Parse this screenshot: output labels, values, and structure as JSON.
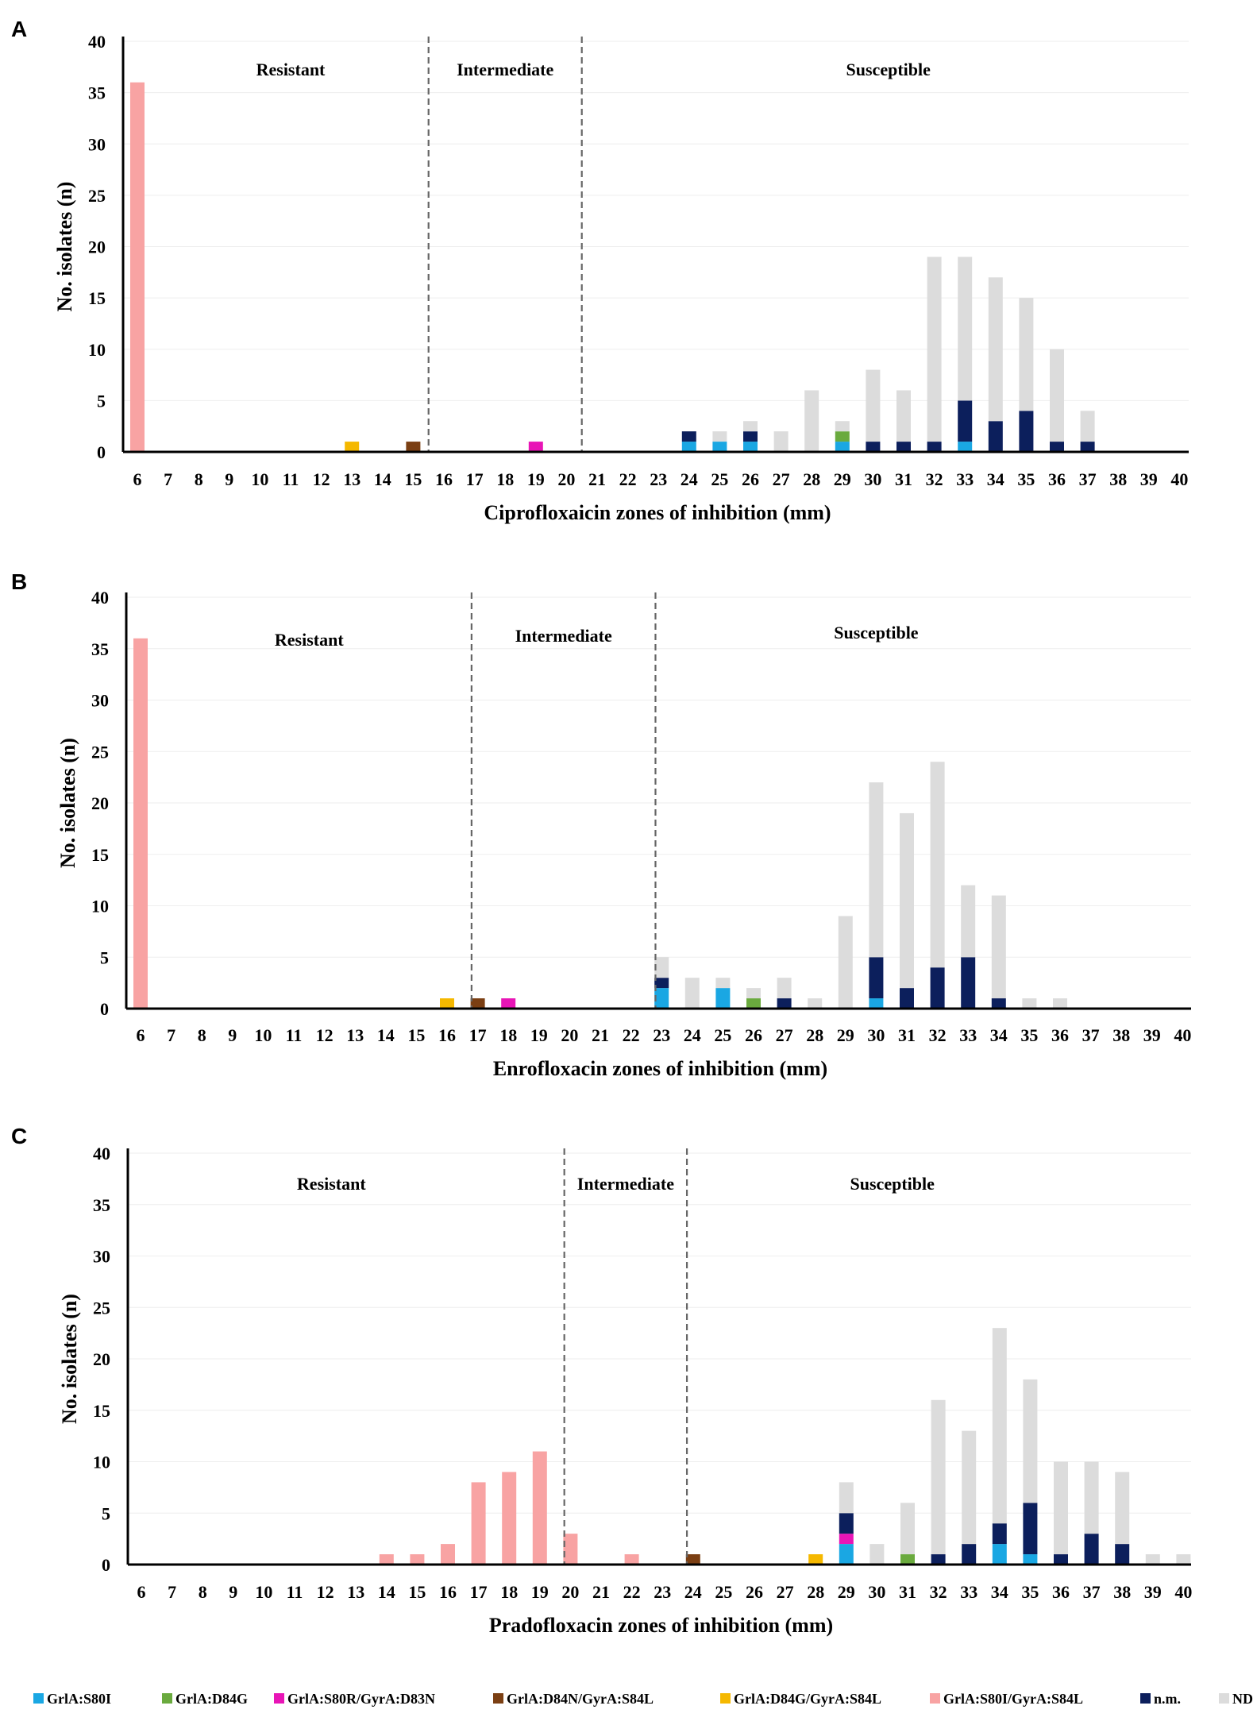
{
  "colors": {
    "GrlA:S80I": "#1aa7e3",
    "GrlA:D84G": "#6aaa3e",
    "GrlA:S80R/GyrA:D83N": "#e815b6",
    "GrlA:D84N/GyrA:S84L": "#7b3f13",
    "GrlA:D84G/GyrA:S84L": "#f5b800",
    "GrlA:S80I/GyrA:S84L": "#f8a3a3",
    "n.m.": "#0c1f5c",
    "ND": "#dcdcdc"
  },
  "legend": [
    {
      "key": "GrlA:S80I",
      "label": "GrlA:S80I"
    },
    {
      "key": "GrlA:D84G",
      "label": "GrlA:D84G"
    },
    {
      "key": "GrlA:S80R/GyrA:D83N",
      "label": "GrlA:S80R/GyrA:D83N"
    },
    {
      "key": "GrlA:D84N/GyrA:S84L",
      "label": "GrlA:D84N/GyrA:S84L"
    },
    {
      "key": "GrlA:D84G/GyrA:S84L",
      "label": "GrlA:D84G/GyrA:S84L"
    },
    {
      "key": "GrlA:S80I/GyrA:S84L",
      "label": "GrlA:S80I/GyrA:S84L"
    },
    {
      "key": "n.m.",
      "label": "n.m."
    },
    {
      "key": "ND",
      "label": "ND"
    }
  ],
  "chart_data": [
    {
      "type": "bar",
      "stacked": true,
      "panel": "A",
      "xlabel": "Ciprofloxaicin zones of inhibition (mm)",
      "ylabel": "No. isolates (n)",
      "ylim": [
        0,
        40
      ],
      "yticks": [
        0,
        5,
        10,
        15,
        20,
        25,
        30,
        35,
        40
      ],
      "categories": [
        "6",
        "7",
        "8",
        "9",
        "10",
        "11",
        "12",
        "13",
        "14",
        "15",
        "16",
        "17",
        "18",
        "19",
        "20",
        "21",
        "22",
        "23",
        "24",
        "25",
        "26",
        "27",
        "28",
        "29",
        "30",
        "31",
        "32",
        "33",
        "34",
        "35",
        "36",
        "37",
        "38",
        "39",
        "40"
      ],
      "breakpoints": [
        15.5,
        20.5
      ],
      "regions": [
        {
          "label": "Resistant",
          "x": 11
        },
        {
          "label": "Intermediate",
          "x": 18
        },
        {
          "label": "Susceptible",
          "x": 30.5
        }
      ],
      "bars": {
        "6": {
          "GrlA:S80I/GyrA:S84L": 36
        },
        "13": {
          "GrlA:D84G/GyrA:S84L": 1
        },
        "15": {
          "GrlA:D84N/GyrA:S84L": 1
        },
        "19": {
          "GrlA:S80R/GyrA:D83N": 1
        },
        "24": {
          "GrlA:S80I": 1,
          "n.m.": 1
        },
        "25": {
          "GrlA:S80I": 1,
          "ND": 1
        },
        "26": {
          "GrlA:S80I": 1,
          "n.m.": 1,
          "ND": 1
        },
        "27": {
          "ND": 2
        },
        "28": {
          "ND": 6
        },
        "29": {
          "GrlA:S80I": 1,
          "GrlA:D84G": 1,
          "ND": 1
        },
        "30": {
          "n.m.": 1,
          "ND": 7
        },
        "31": {
          "n.m.": 1,
          "ND": 5
        },
        "32": {
          "n.m.": 1,
          "ND": 18
        },
        "33": {
          "GrlA:S80I": 1,
          "n.m.": 4,
          "ND": 14
        },
        "34": {
          "n.m.": 3,
          "ND": 14
        },
        "35": {
          "n.m.": 4,
          "ND": 11
        },
        "36": {
          "n.m.": 1,
          "ND": 9
        },
        "37": {
          "n.m.": 1,
          "ND": 3
        }
      }
    },
    {
      "type": "bar",
      "stacked": true,
      "panel": "B",
      "xlabel": "Enrofloxacin zones of inhibition (mm)",
      "ylabel": "No.  isolates (n)",
      "ylim": [
        0,
        40
      ],
      "yticks": [
        0,
        5,
        10,
        15,
        20,
        25,
        30,
        35,
        40
      ],
      "categories": [
        "6",
        "7",
        "8",
        "9",
        "10",
        "11",
        "12",
        "13",
        "14",
        "15",
        "16",
        "17",
        "18",
        "19",
        "20",
        "21",
        "22",
        "23",
        "24",
        "25",
        "26",
        "27",
        "28",
        "29",
        "30",
        "31",
        "32",
        "33",
        "34",
        "35",
        "36",
        "37",
        "38",
        "39",
        "40"
      ],
      "breakpoints": [
        16.8,
        22.8
      ],
      "regions": [
        {
          "label": "Resistant",
          "x": 11.5
        },
        {
          "label": "Intermediate",
          "x": 19.8
        },
        {
          "label": "Susceptible",
          "x": 30
        }
      ],
      "bars": {
        "6": {
          "GrlA:S80I/GyrA:S84L": 36
        },
        "16": {
          "GrlA:D84G/GyrA:S84L": 1
        },
        "17": {
          "GrlA:D84N/GyrA:S84L": 1
        },
        "18": {
          "GrlA:S80R/GyrA:D83N": 1
        },
        "23": {
          "GrlA:S80I": 2,
          "n.m.": 1,
          "ND": 2
        },
        "24": {
          "ND": 3
        },
        "25": {
          "GrlA:S80I": 2,
          "ND": 1
        },
        "26": {
          "GrlA:D84G": 1,
          "ND": 1
        },
        "27": {
          "n.m.": 1,
          "ND": 2
        },
        "28": {
          "ND": 1
        },
        "29": {
          "ND": 9
        },
        "30": {
          "GrlA:S80I": 1,
          "n.m.": 4,
          "ND": 17
        },
        "31": {
          "n.m.": 2,
          "ND": 17
        },
        "32": {
          "n.m.": 4,
          "ND": 20
        },
        "33": {
          "n.m.": 5,
          "ND": 7
        },
        "34": {
          "n.m.": 1,
          "ND": 10
        },
        "35": {
          "ND": 1
        },
        "36": {
          "ND": 1
        }
      }
    },
    {
      "type": "bar",
      "stacked": true,
      "panel": "C",
      "xlabel": "Pradofloxacin zones of inhibition (mm)",
      "ylabel": "No. isolates (n)",
      "ylim": [
        0,
        40
      ],
      "yticks": [
        0,
        5,
        10,
        15,
        20,
        25,
        30,
        35,
        40
      ],
      "categories": [
        "6",
        "7",
        "8",
        "9",
        "10",
        "11",
        "12",
        "13",
        "14",
        "15",
        "16",
        "17",
        "18",
        "19",
        "20",
        "21",
        "22",
        "23",
        "24",
        "25",
        "26",
        "27",
        "28",
        "29",
        "30",
        "31",
        "32",
        "33",
        "34",
        "35",
        "36",
        "37",
        "38",
        "39",
        "40"
      ],
      "breakpoints": [
        19.8,
        23.8
      ],
      "regions": [
        {
          "label": "Resistant",
          "x": 12.2
        },
        {
          "label": "Intermediate",
          "x": 21.8
        },
        {
          "label": "Susceptible",
          "x": 30.5
        }
      ],
      "bars": {
        "14": {
          "GrlA:S80I/GyrA:S84L": 1
        },
        "15": {
          "GrlA:S80I/GyrA:S84L": 1
        },
        "16": {
          "GrlA:S80I/GyrA:S84L": 2
        },
        "17": {
          "GrlA:S80I/GyrA:S84L": 8
        },
        "18": {
          "GrlA:S80I/GyrA:S84L": 9
        },
        "19": {
          "GrlA:S80I/GyrA:S84L": 11
        },
        "20": {
          "GrlA:S80I/GyrA:S84L": 3
        },
        "22": {
          "GrlA:S80I/GyrA:S84L": 1
        },
        "24": {
          "GrlA:D84N/GyrA:S84L": 1
        },
        "28": {
          "GrlA:D84G/GyrA:S84L": 1
        },
        "29": {
          "GrlA:S80I": 2,
          "GrlA:S80R/GyrA:D83N": 1,
          "n.m.": 2,
          "ND": 3
        },
        "30": {
          "ND": 2
        },
        "31": {
          "GrlA:D84G": 1,
          "ND": 5
        },
        "32": {
          "n.m.": 1,
          "ND": 15
        },
        "33": {
          "n.m.": 2,
          "ND": 11
        },
        "34": {
          "GrlA:S80I": 2,
          "n.m.": 2,
          "ND": 19
        },
        "35": {
          "GrlA:S80I": 1,
          "n.m.": 5,
          "ND": 12
        },
        "36": {
          "n.m.": 1,
          "ND": 9
        },
        "37": {
          "n.m.": 3,
          "ND": 7
        },
        "38": {
          "n.m.": 2,
          "ND": 7
        },
        "39": {
          "ND": 1
        },
        "40": {
          "ND": 1
        }
      }
    }
  ]
}
